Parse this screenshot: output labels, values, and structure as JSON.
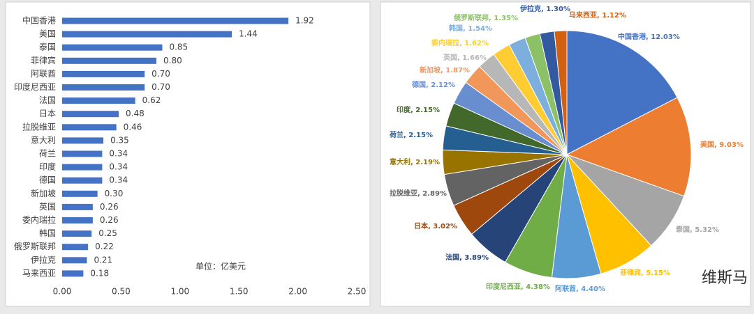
{
  "chart_data": [
    {
      "type": "hbar",
      "categories": [
        "中国香港",
        "美国",
        "泰国",
        "菲律宾",
        "阿联酋",
        "印度尼西亚",
        "法国",
        "日本",
        "拉脱维亚",
        "意大利",
        "荷兰",
        "印度",
        "德国",
        "新加坡",
        "英国",
        "委内瑞拉",
        "韩国",
        "俄罗斯联邦",
        "伊拉克",
        "马来西亚"
      ],
      "values": [
        1.92,
        1.44,
        0.85,
        0.8,
        0.7,
        0.7,
        0.62,
        0.48,
        0.46,
        0.35,
        0.34,
        0.34,
        0.34,
        0.3,
        0.26,
        0.26,
        0.25,
        0.22,
        0.21,
        0.18
      ],
      "value_labels": [
        "1.92",
        "1.44",
        "0.85",
        "0.80",
        "0.70",
        "0.70",
        "0.62",
        "0.48",
        "0.46",
        "0.35",
        "0.34",
        "0.34",
        "0.34",
        "0.30",
        "0.26",
        "0.26",
        "0.25",
        "0.22",
        "0.21",
        "0.18"
      ],
      "color": "#4472c4",
      "xlim": [
        0,
        2.5
      ],
      "xticks": [
        {
          "value": 0,
          "label": "0.00"
        },
        {
          "value": 0.5,
          "label": "0.50"
        },
        {
          "value": 1,
          "label": "1.00"
        },
        {
          "value": 1.5,
          "label": "1.50"
        },
        {
          "value": 2,
          "label": "2.00"
        },
        {
          "value": 2.5,
          "label": "2.50"
        }
      ],
      "annotation": "单位：亿美元"
    },
    {
      "type": "pie",
      "values": [
        12.03,
        9.03,
        5.32,
        5.15,
        4.4,
        4.38,
        3.89,
        3.02,
        2.89,
        2.19,
        2.15,
        2.15,
        2.12,
        1.87,
        1.66,
        1.62,
        1.54,
        1.35,
        1.3,
        1.12
      ],
      "value_labels": [
        "中国香港, 12.03%",
        "美国, 9.03%",
        "泰国, 5.32%",
        "菲律宾, 5.15%",
        "阿联酋, 4.40%",
        "印度尼西亚, 4.38%",
        "法国, 3.89%",
        "日本, 3.02%",
        "拉脱维亚, 2.89%",
        "意大利, 2.19%",
        "荷兰, 2.15%",
        "印度, 2.15%",
        "德国, 2.12%",
        "新加坡, 1.87%",
        "英国, 1.66%",
        "委内瑞拉, 1.62%",
        "韩国, 1.54%",
        "俄罗斯联邦, 1.35%",
        "伊拉克, 1.30%",
        "马来西亚, 1.12%"
      ],
      "colors": [
        "#4472c4",
        "#ed7d31",
        "#a5a5a5",
        "#ffc000",
        "#5b9bd5",
        "#70ad47",
        "#264478",
        "#9e480e",
        "#636363",
        "#997300",
        "#255e91",
        "#43682b",
        "#698ed0",
        "#f1975a",
        "#b7b7b7",
        "#ffcd33",
        "#7cafdd",
        "#8cc168",
        "#335aa1",
        "#d26012"
      ]
    }
  ],
  "brand": "维斯马"
}
